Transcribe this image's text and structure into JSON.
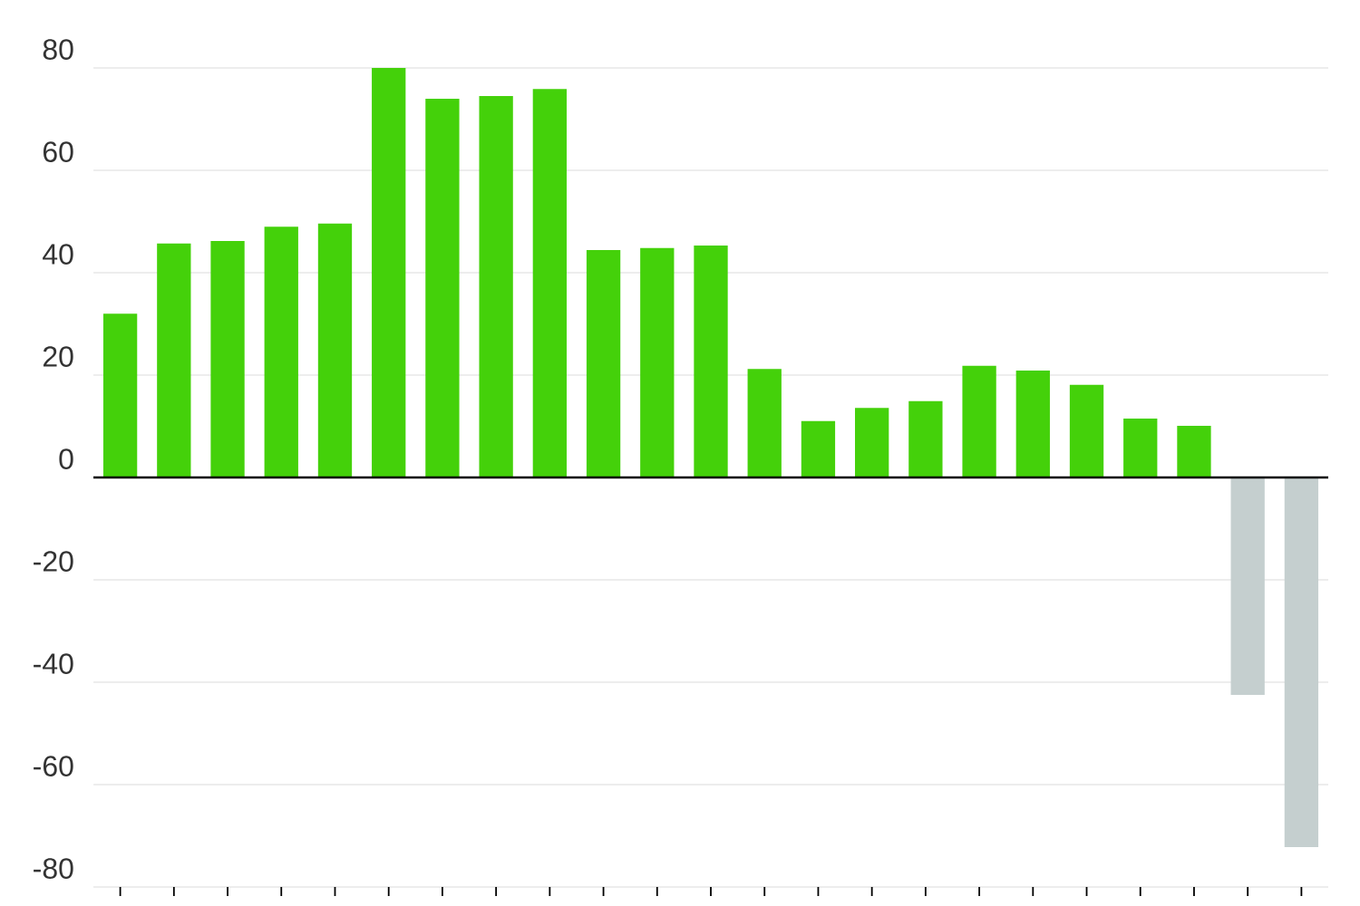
{
  "chart_data": {
    "type": "bar",
    "categories": [
      null,
      null,
      null,
      null,
      null,
      null,
      null,
      null,
      null,
      null,
      null,
      null,
      null,
      null,
      null,
      null,
      null,
      null,
      null,
      null,
      null,
      null,
      null
    ],
    "values": [
      32.0,
      45.7,
      46.2,
      49.0,
      49.6,
      80.0,
      74.0,
      74.5,
      75.9,
      44.4,
      44.8,
      45.3,
      21.2,
      11.0,
      13.6,
      14.9,
      21.8,
      20.9,
      18.1,
      11.5,
      10.1,
      -42.5,
      -72.2
    ],
    "colors": [
      "#44d10a",
      "#44d10a",
      "#44d10a",
      "#44d10a",
      "#44d10a",
      "#44d10a",
      "#44d10a",
      "#44d10a",
      "#44d10a",
      "#44d10a",
      "#44d10a",
      "#44d10a",
      "#44d10a",
      "#44d10a",
      "#44d10a",
      "#44d10a",
      "#44d10a",
      "#44d10a",
      "#44d10a",
      "#44d10a",
      "#44d10a",
      "#c5cfcf",
      "#c5cfcf"
    ],
    "ylim": [
      -80,
      80
    ],
    "yticks": [
      -80,
      -60,
      -40,
      -20,
      0,
      20,
      40,
      60,
      80
    ],
    "grid": "y"
  }
}
